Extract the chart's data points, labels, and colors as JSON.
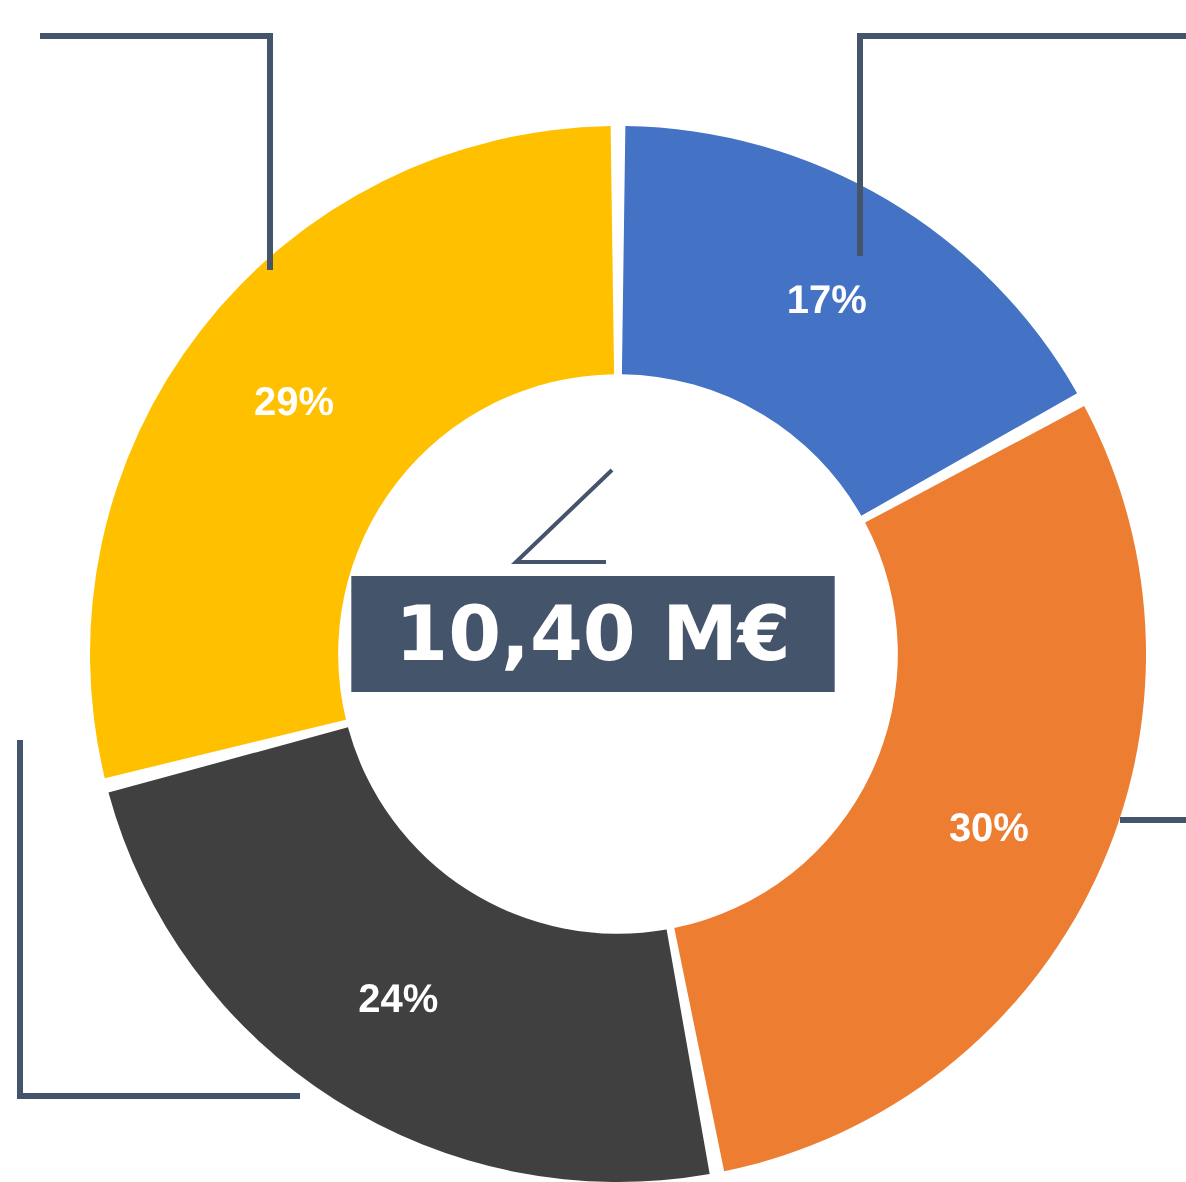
{
  "chart_data": {
    "type": "donut",
    "title": "10,40 M€",
    "categories": [
      null,
      null,
      null,
      null
    ],
    "values": [
      17,
      30,
      24,
      29
    ],
    "colors": [
      "#4472c4",
      "#ed7d31",
      "#404040",
      "#ffc000"
    ],
    "value_labels": [
      "17%",
      "30%",
      "24%",
      "29%"
    ]
  }
}
